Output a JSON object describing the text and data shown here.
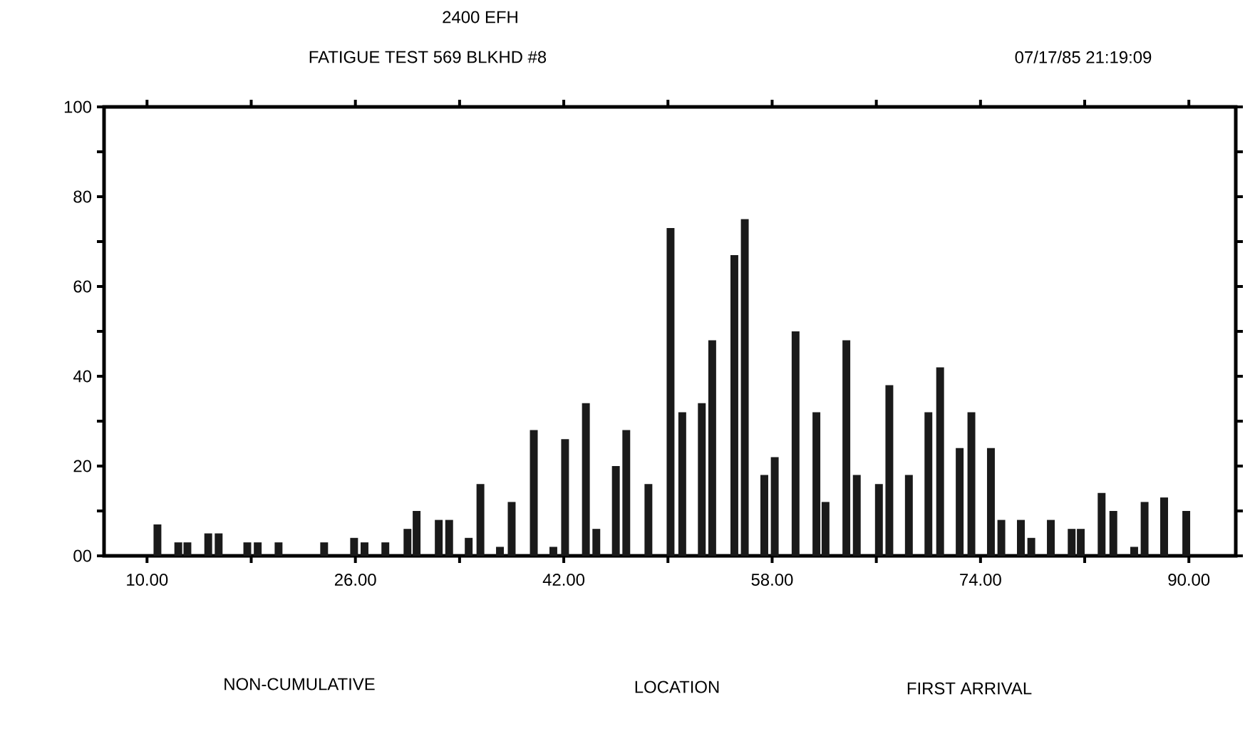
{
  "chart_data": {
    "type": "bar",
    "title": "2400 EFH",
    "subtitle": "FATIGUE TEST 569 BLKHD #8",
    "annotations": [
      "07/17/85 21:19:09",
      "NON-CUMULATIVE",
      "LOCATION",
      "FIRST ARRIVAL"
    ],
    "x": [
      10.8,
      12.4,
      13.1,
      14.7,
      15.5,
      17.7,
      18.5,
      20.1,
      23.6,
      25.9,
      26.7,
      28.3,
      30.0,
      30.7,
      32.4,
      33.2,
      34.7,
      35.6,
      37.1,
      38.0,
      39.7,
      41.2,
      42.1,
      43.7,
      44.5,
      46.0,
      46.8,
      48.5,
      50.2,
      51.1,
      52.6,
      53.4,
      55.1,
      55.9,
      57.4,
      58.2,
      59.8,
      61.4,
      62.1,
      63.7,
      64.5,
      66.2,
      67.0,
      68.5,
      70.0,
      70.9,
      72.4,
      73.3,
      74.8,
      75.6,
      77.1,
      77.9,
      79.4,
      81.0,
      81.7,
      83.3,
      84.2,
      85.8,
      86.6,
      88.1,
      89.8
    ],
    "values": [
      7,
      3,
      3,
      5,
      5,
      3,
      3,
      3,
      3,
      4,
      3,
      3,
      6,
      10,
      8,
      8,
      4,
      16,
      2,
      12,
      28,
      2,
      26,
      34,
      6,
      20,
      28,
      16,
      73,
      32,
      34,
      48,
      67,
      75,
      18,
      22,
      50,
      32,
      12,
      48,
      18,
      16,
      38,
      18,
      32,
      42,
      24,
      32,
      24,
      8,
      8,
      4,
      8,
      6,
      6,
      14,
      10,
      2,
      12,
      13,
      10
    ],
    "color": "#1a1a1a",
    "xlim": [
      6.7,
      93.6
    ],
    "xticks": [
      {
        "value": 10,
        "label": "10.00"
      },
      {
        "value": 18,
        "label": null
      },
      {
        "value": 26,
        "label": "26.00"
      },
      {
        "value": 34,
        "label": null
      },
      {
        "value": 42,
        "label": "42.00"
      },
      {
        "value": 50,
        "label": null
      },
      {
        "value": 58,
        "label": "58.00"
      },
      {
        "value": 66,
        "label": null
      },
      {
        "value": 74,
        "label": "74.00"
      },
      {
        "value": 82,
        "label": null
      },
      {
        "value": 90,
        "label": "90.00"
      }
    ],
    "ylim": [
      0,
      100
    ],
    "yticks": [
      {
        "value": 0,
        "label": "00"
      },
      {
        "value": 10,
        "label": null
      },
      20,
      {
        "value": 30,
        "label": null
      },
      40,
      {
        "value": 50,
        "label": null
      },
      60,
      {
        "value": 70,
        "label": null
      },
      80,
      {
        "value": 90,
        "label": null
      },
      100
    ]
  }
}
